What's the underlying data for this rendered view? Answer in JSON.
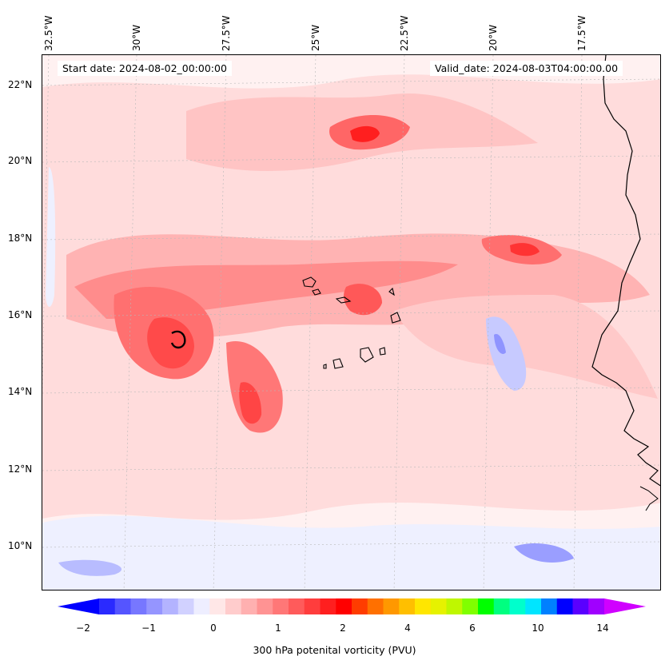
{
  "header": {
    "start_date": "Start date: 2024-08-02_00:00:00",
    "valid_date": "Valid_date: 2024-08-03T04:00:00.00"
  },
  "map": {
    "lon_labels": [
      "32.5°W",
      "30°W",
      "27.5°W",
      "25°W",
      "22.5°W",
      "20°W",
      "17.5°W"
    ],
    "lat_labels": [
      "22°N",
      "20°N",
      "18°N",
      "16°N",
      "14°N",
      "12°N",
      "10°N"
    ],
    "field": "300 hPa potential vorticity",
    "background_color": "#fff1f1"
  },
  "colorbar": {
    "label": "300 hPa potenital vorticity (PVU)",
    "ticks": [
      "−2",
      "−1",
      "0",
      "1",
      "2",
      "4",
      "6",
      "10",
      "14"
    ],
    "colors": [
      "#0000ff",
      "#2a2aff",
      "#5555ff",
      "#7777ff",
      "#9595ff",
      "#b3b3ff",
      "#d1d1ff",
      "#eeeeff",
      "#ffe7e7",
      "#ffcccc",
      "#ffb0b0",
      "#ff9393",
      "#ff7777",
      "#ff5b5b",
      "#ff3d3d",
      "#ff1f1f",
      "#ff0000",
      "#ff3c00",
      "#ff7000",
      "#ff9800",
      "#ffbf00",
      "#ffe600",
      "#e6f200",
      "#bff700",
      "#80ff00",
      "#00ff00",
      "#00ff80",
      "#00ffcc",
      "#00e5ff",
      "#0080ff",
      "#0000ff",
      "#5a00ff",
      "#a000ff",
      "#d000ff"
    ]
  }
}
